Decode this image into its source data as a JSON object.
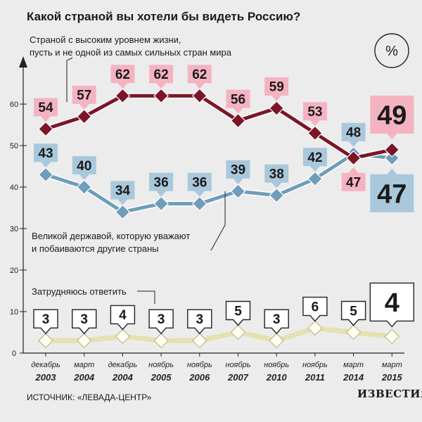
{
  "title": "Какой страной вы хотели бы видеть Россию?",
  "source": "ИСТОЧНИК: «ЛЕВАДА-ЦЕНТР»",
  "brand": "ИЗВЕСТИЯ",
  "unit_badge": "%",
  "colors": {
    "series_1": "#7b1628",
    "series_1_label": "#f5b3c2",
    "series_2": "#6f9dbb",
    "series_2_label": "#a9c8db",
    "series_3": "#fffef0",
    "series_3_line": "#e5e1b0",
    "background": "#ececec"
  },
  "chart_data": {
    "type": "line",
    "x": [
      "декабрь 2003",
      "март 2004",
      "декабрь 2004",
      "ноябрь 2005",
      "ноябрь 2006",
      "ноябрь 2007",
      "ноябрь 2010",
      "ноябрь 2011",
      "март 2014",
      "март 2015"
    ],
    "x_month": [
      "декабрь",
      "март",
      "декабрь",
      "ноябрь",
      "ноябрь",
      "ноябрь",
      "ноябрь",
      "ноябрь",
      "март",
      "март"
    ],
    "x_year": [
      "2003",
      "2004",
      "2004",
      "2005",
      "2006",
      "2007",
      "2010",
      "2011",
      "2014",
      "2015"
    ],
    "yticks": [
      0,
      10,
      20,
      30,
      40,
      50,
      60
    ],
    "ylim": [
      0,
      70
    ],
    "grid": false,
    "series": [
      {
        "name": "Страной с высоким уровнем жизни, пусть и не одной из самых сильных стран мира",
        "label_lines": [
          "Страной с высоким уровнем жизни,",
          "пусть и не одной из самых сильных стран мира"
        ],
        "values": [
          54,
          57,
          62,
          62,
          62,
          56,
          59,
          53,
          47,
          49
        ],
        "labels": [
          "54",
          "57",
          "62",
          "62",
          "62",
          "56",
          "59",
          "53",
          "47",
          "49"
        ]
      },
      {
        "name": "Великой державой, которую уважают и побаиваются другие страны",
        "label_lines": [
          "Великой державой, которую уважают",
          "и побаиваются другие страны"
        ],
        "values": [
          43,
          40,
          34,
          36,
          36,
          39,
          38,
          42,
          48,
          47
        ],
        "labels": [
          "43",
          "40",
          "34",
          "36",
          "36",
          "39",
          "38",
          "42",
          "48",
          "47"
        ]
      },
      {
        "name": "Затрудняюсь ответить",
        "label_lines": [
          "Затрудняюсь ответить"
        ],
        "values": [
          3,
          3,
          4,
          3,
          3,
          5,
          3,
          6,
          5,
          4
        ],
        "labels": [
          "3",
          "3",
          "4",
          "3",
          "3",
          "5",
          "3",
          "6",
          "5",
          "4"
        ]
      }
    ]
  }
}
